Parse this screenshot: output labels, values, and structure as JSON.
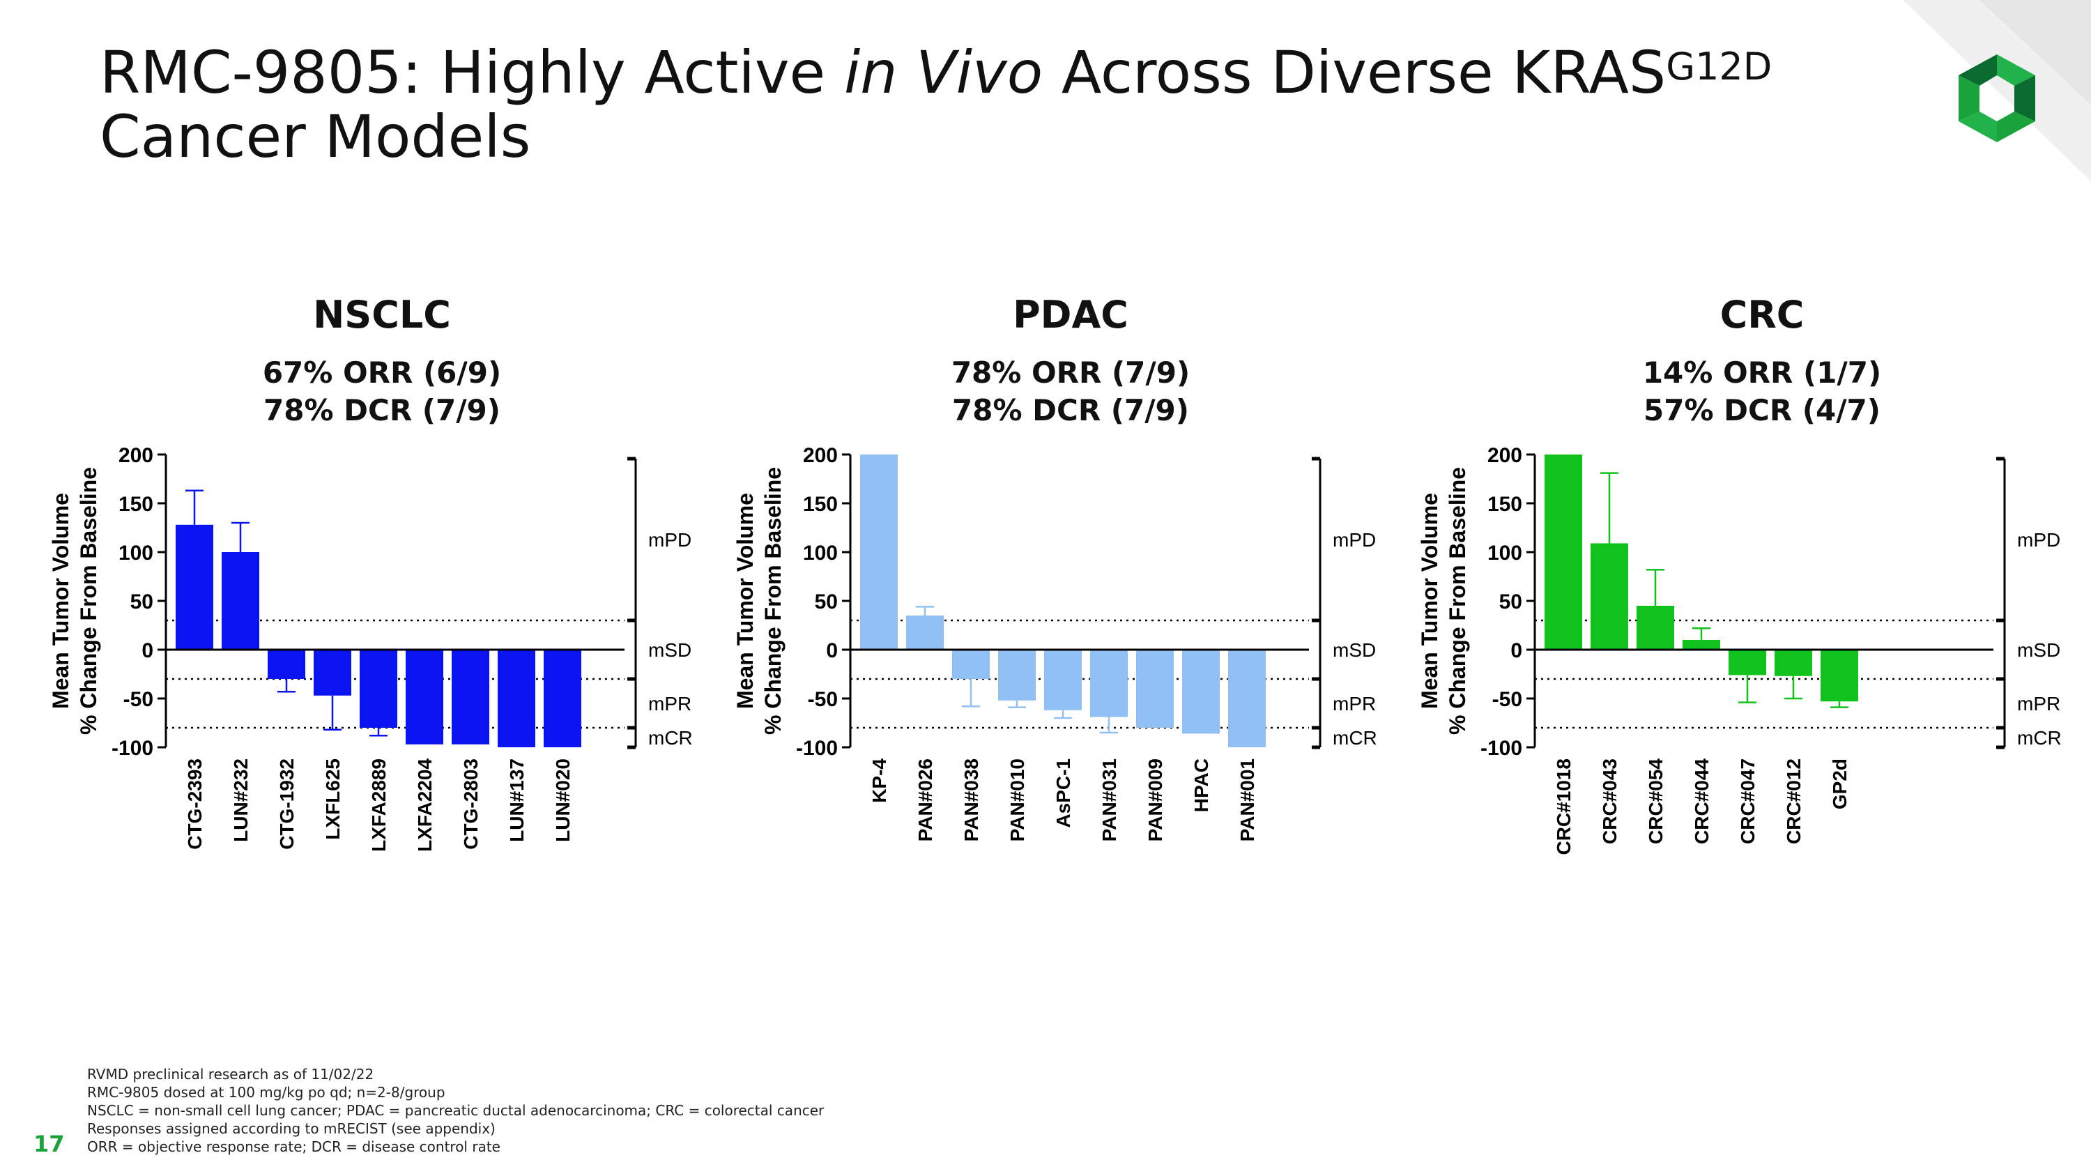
{
  "slide": {
    "title_part1": "RMC-9805: Highly Active ",
    "title_italic": "in Vivo",
    "title_part2": " Across Diverse KRAS",
    "title_sup": "G12D",
    "title_line2": "Cancer Models",
    "page_number": "17",
    "footnotes": [
      "RVMD preclinical research as of 11/02/22",
      "RMC-9805 dosed at 100 mg/kg po qd; n=2-8/group",
      "NSCLC = non-small cell lung cancer; PDAC = pancreatic ductal adenocarcinoma; CRC = colorectal cancer",
      "Responses assigned according to mRECIST (see appendix)",
      "ORR = objective response rate; DCR = disease control rate"
    ],
    "colors": {
      "accent_green": "#1aa33a",
      "logo_dark": "#0a6b2e",
      "logo_light": "#22b24c"
    }
  },
  "chart_data": [
    {
      "type": "bar",
      "title": "NSCLC",
      "orr": "67% ORR (6/9)",
      "dcr": "78% DCR (7/9)",
      "color": "#0a14f0",
      "categories": [
        "CTG-2393",
        "LUN#232",
        "CTG-1932",
        "LXFL625",
        "LXFA2889",
        "LXFA2204",
        "CTG-2803",
        "LUN#137",
        "LUN#020"
      ],
      "values": [
        128,
        100,
        -30,
        -47,
        -80,
        -97,
        -97,
        -100,
        -100
      ],
      "errors": [
        35,
        30,
        13,
        35,
        8,
        0,
        0,
        0,
        0
      ],
      "ylabel_line1": "Mean Tumor Volume",
      "ylabel_line2": "% Change From Baseline",
      "ylim": [
        -100,
        200
      ],
      "yticks": [
        "200",
        "150",
        "100",
        "50",
        "0",
        "-50",
        "-100"
      ],
      "thresholds": [
        30,
        -30,
        -80
      ],
      "response_labels": [
        "mPD",
        "mSD",
        "mPR",
        "mCR"
      ]
    },
    {
      "type": "bar",
      "title": "PDAC",
      "orr": "78% ORR (7/9)",
      "dcr": "78% DCR (7/9)",
      "color": "#90c0f4",
      "categories": [
        "KP-4",
        "PAN#026",
        "PAN#038",
        "PAN#010",
        "AsPC-1",
        "PAN#031",
        "PAN#009",
        "HPAC",
        "PAN#001"
      ],
      "values": [
        200,
        35,
        -30,
        -52,
        -62,
        -69,
        -80,
        -86,
        -100
      ],
      "errors": [
        0,
        9,
        28,
        7,
        8,
        16,
        0,
        0,
        0
      ],
      "ylabel_line1": "Mean Tumor Volume",
      "ylabel_line2": "% Change From Baseline",
      "ylim": [
        -100,
        200
      ],
      "yticks": [
        "200",
        "150",
        "100",
        "50",
        "0",
        "-50",
        "-100"
      ],
      "thresholds": [
        30,
        -30,
        -80
      ],
      "response_labels": [
        "mPD",
        "mSD",
        "mPR",
        "mCR"
      ]
    },
    {
      "type": "bar",
      "title": "CRC",
      "orr": "14% ORR (1/7)",
      "dcr": "57% DCR (4/7)",
      "color": "#12c21c",
      "categories": [
        "CRC#1018",
        "CRC#043",
        "CRC#054",
        "CRC#044",
        "CRC#047",
        "CRC#012",
        "GP2d"
      ],
      "values": [
        200,
        109,
        45,
        10,
        -26,
        -27,
        -53
      ],
      "errors": [
        0,
        72,
        37,
        12,
        28,
        23,
        6
      ],
      "ylabel_line1": "Mean Tumor Volume",
      "ylabel_line2": "% Change From Baseline",
      "ylim": [
        -100,
        200
      ],
      "yticks": [
        "200",
        "150",
        "100",
        "50",
        "0",
        "-50",
        "-100"
      ],
      "thresholds": [
        30,
        -30,
        -80
      ],
      "response_labels": [
        "mPD",
        "mSD",
        "mPR",
        "mCR"
      ]
    }
  ]
}
